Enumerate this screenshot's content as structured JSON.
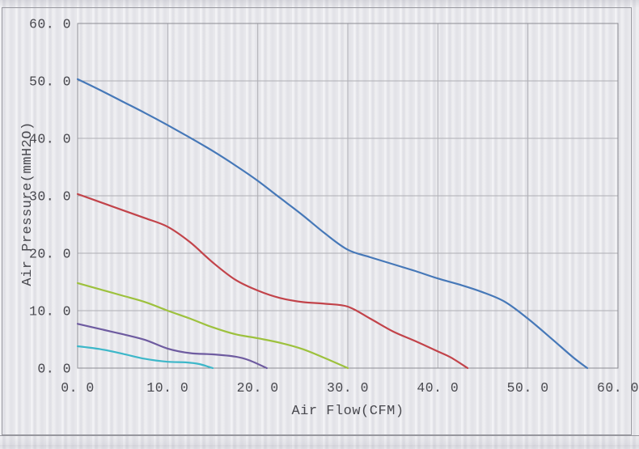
{
  "chart_data": {
    "type": "line",
    "xlabel": "Air Flow(CFM)",
    "ylabel": "Air Pressure(mmH2O)",
    "xlim": [
      0,
      60
    ],
    "ylim": [
      0,
      60
    ],
    "x_tick_labels": [
      "0. 0",
      "10. 0",
      "20. 0",
      "30. 0",
      "40. 0",
      "50. 0",
      "60. 0"
    ],
    "y_tick_labels": [
      "0. 0",
      "10. 0",
      "20. 0",
      "30. 0",
      "40. 0",
      "50. 0",
      "60. 0"
    ],
    "grid": true,
    "legend": "none",
    "grid_color": "#aeaeb4",
    "axis_color": "#8c8c93",
    "frame_color": "#97979e",
    "text_color": "#49494f",
    "series": [
      {
        "name": "curve-1-blue",
        "color": "#4678b8",
        "points": [
          [
            0,
            50.3
          ],
          [
            2.5,
            48.4
          ],
          [
            5,
            46.4
          ],
          [
            7.5,
            44.4
          ],
          [
            10,
            42.3
          ],
          [
            12.5,
            40.1
          ],
          [
            15,
            37.8
          ],
          [
            17.5,
            35.3
          ],
          [
            20,
            32.6
          ],
          [
            22.5,
            29.6
          ],
          [
            25,
            26.6
          ],
          [
            27.5,
            23.4
          ],
          [
            30,
            20.6
          ],
          [
            32.5,
            19.3
          ],
          [
            35,
            18.1
          ],
          [
            37.5,
            16.9
          ],
          [
            40,
            15.6
          ],
          [
            42.5,
            14.5
          ],
          [
            45,
            13.2
          ],
          [
            47.5,
            11.5
          ],
          [
            50,
            8.6
          ],
          [
            52.5,
            5.3
          ],
          [
            55,
            1.9
          ],
          [
            56.6,
            0
          ]
        ]
      },
      {
        "name": "curve-2-red",
        "color": "#c2434a",
        "points": [
          [
            0,
            30.3
          ],
          [
            2.5,
            28.9
          ],
          [
            5,
            27.5
          ],
          [
            7.5,
            26.1
          ],
          [
            10,
            24.6
          ],
          [
            12.5,
            21.9
          ],
          [
            15,
            18.4
          ],
          [
            17.5,
            15.4
          ],
          [
            20,
            13.5
          ],
          [
            22.5,
            12.2
          ],
          [
            25,
            11.5
          ],
          [
            27.5,
            11.2
          ],
          [
            30,
            10.7
          ],
          [
            32.5,
            8.6
          ],
          [
            35,
            6.4
          ],
          [
            37.5,
            4.7
          ],
          [
            40,
            2.9
          ],
          [
            41.5,
            1.8
          ],
          [
            43.3,
            0
          ]
        ]
      },
      {
        "name": "curve-3-green",
        "color": "#9dc13d",
        "points": [
          [
            0,
            14.8
          ],
          [
            2.5,
            13.7
          ],
          [
            5,
            12.6
          ],
          [
            7.5,
            11.5
          ],
          [
            10,
            10.0
          ],
          [
            12.5,
            8.6
          ],
          [
            15,
            7.1
          ],
          [
            17.5,
            5.9
          ],
          [
            20,
            5.2
          ],
          [
            22.5,
            4.4
          ],
          [
            25,
            3.3
          ],
          [
            27.5,
            1.7
          ],
          [
            30,
            0
          ]
        ]
      },
      {
        "name": "curve-4-purple",
        "color": "#6e5ba0",
        "points": [
          [
            0,
            7.7
          ],
          [
            2.5,
            6.8
          ],
          [
            5,
            5.9
          ],
          [
            7.5,
            4.9
          ],
          [
            10,
            3.4
          ],
          [
            12.5,
            2.6
          ],
          [
            15,
            2.4
          ],
          [
            17.5,
            2.0
          ],
          [
            19,
            1.4
          ],
          [
            21,
            0
          ]
        ]
      },
      {
        "name": "curve-5-cyan",
        "color": "#3db7c9",
        "points": [
          [
            0,
            3.8
          ],
          [
            2.5,
            3.3
          ],
          [
            5,
            2.5
          ],
          [
            7.5,
            1.6
          ],
          [
            10,
            1.1
          ],
          [
            12,
            1.0
          ],
          [
            13.5,
            0.7
          ],
          [
            15,
            0
          ]
        ]
      }
    ]
  }
}
